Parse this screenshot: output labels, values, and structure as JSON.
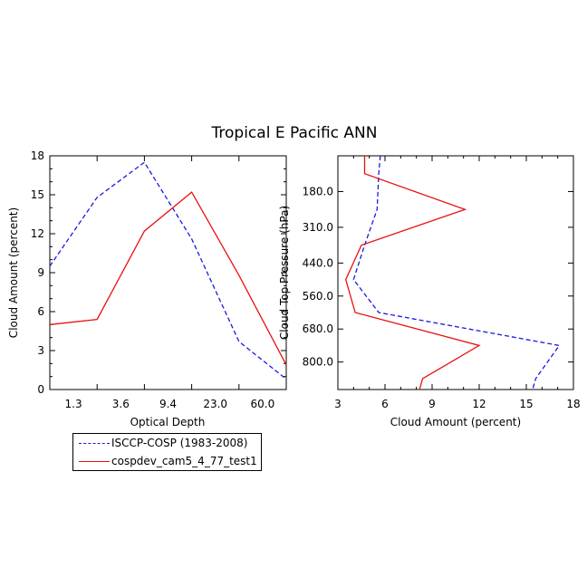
{
  "title": "Tropical E Pacific ANN",
  "colors": {
    "isccp": "#1a1adb",
    "cam": "#e81010",
    "axis": "#000000"
  },
  "legend": {
    "items": [
      {
        "label": "ISCCP-COSP (1983-2008)",
        "style": "dashed",
        "color": "#1a1adb"
      },
      {
        "label": "cospdev_cam5_4_77_test1",
        "style": "solid",
        "color": "#e81010"
      }
    ]
  },
  "chart_data": [
    {
      "type": "line",
      "xlabel": "Optical Depth",
      "ylabel": "Cloud Amount (percent)",
      "x_index": [
        0,
        1,
        2,
        3,
        4,
        5,
        6
      ],
      "x_ticks": [
        {
          "pos": 0.5,
          "label": "1.3"
        },
        {
          "pos": 1.5,
          "label": "3.6"
        },
        {
          "pos": 2.5,
          "label": "9.4"
        },
        {
          "pos": 3.5,
          "label": "23.0"
        },
        {
          "pos": 4.5,
          "label": "60.0"
        }
      ],
      "x_minor": [
        1,
        2,
        3,
        4
      ],
      "xlim": [
        0,
        5
      ],
      "y_ticks": [
        0,
        3,
        6,
        9,
        12,
        15,
        18
      ],
      "ylim": [
        0,
        18
      ],
      "series": [
        {
          "name": "ISCCP-COSP (1983-2008)",
          "style": "dashed",
          "x": [
            0,
            1,
            2,
            3,
            4,
            5
          ],
          "y": [
            9.5,
            14.8,
            17.5,
            11.6,
            3.7,
            0.8
          ]
        },
        {
          "name": "cospdev_cam5_4_77_test1",
          "style": "solid",
          "x": [
            0,
            1,
            2,
            3,
            4,
            5
          ],
          "y": [
            5.0,
            5.4,
            12.2,
            15.2,
            8.8,
            1.9
          ]
        }
      ]
    },
    {
      "type": "line",
      "orientation": "vertical-profile",
      "xlabel": "Cloud Amount (percent)",
      "ylabel": "Cloud Top Pressure (hPa)",
      "xlim": [
        3,
        18
      ],
      "x_ticks": [
        3,
        6,
        9,
        12,
        15,
        18
      ],
      "ylim": [
        50,
        900
      ],
      "y_ticks": [
        {
          "value": 180,
          "label": "180.0"
        },
        {
          "value": 310,
          "label": "310.0"
        },
        {
          "value": 440,
          "label": "440.0"
        },
        {
          "value": 560,
          "label": "560.0"
        },
        {
          "value": 680,
          "label": "680.0"
        },
        {
          "value": 800,
          "label": "800.0"
        }
      ],
      "series": [
        {
          "name": "ISCCP-COSP (1983-2008)",
          "style": "dashed",
          "pressure": [
            50,
            115,
            245,
            375,
            500,
            620,
            740,
            860,
            900
          ],
          "amount": [
            5.7,
            5.6,
            5.5,
            4.7,
            4.0,
            5.6,
            17.1,
            15.6,
            15.4
          ]
        },
        {
          "name": "cospdev_cam5_4_77_test1",
          "style": "solid",
          "pressure": [
            50,
            115,
            245,
            375,
            500,
            620,
            740,
            860,
            900
          ],
          "amount": [
            4.7,
            4.7,
            11.1,
            4.5,
            3.5,
            4.1,
            12.0,
            8.4,
            8.2
          ]
        }
      ]
    }
  ]
}
